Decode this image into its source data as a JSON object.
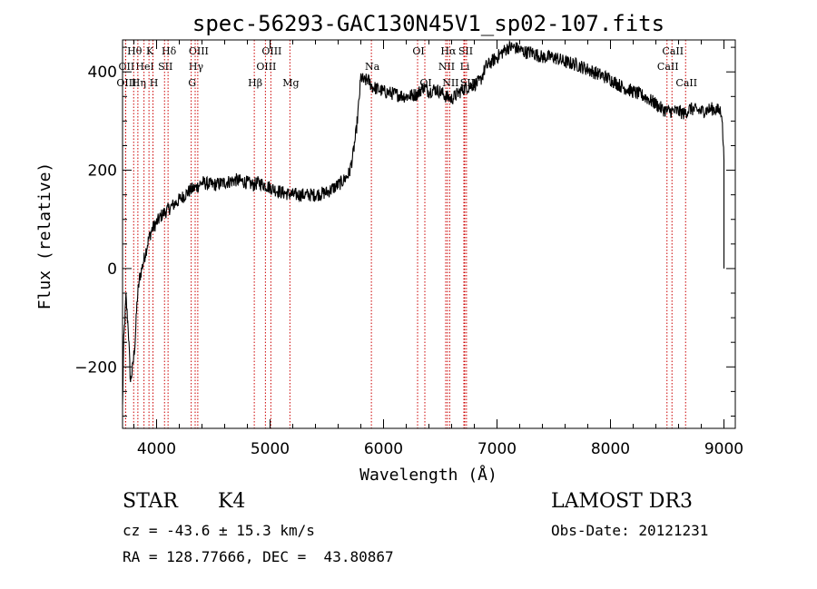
{
  "chart_data": {
    "type": "line",
    "title": "spec-56293-GAC130N45V1_sp02-107.fits",
    "xlabel": "Wavelength (Å)",
    "ylabel": "Flux (relative)",
    "xlim": [
      3700,
      9100
    ],
    "ylim": [
      -325,
      465
    ],
    "xticks": [
      4000,
      5000,
      6000,
      7000,
      8000,
      9000
    ],
    "yticks": [
      -200,
      0,
      200,
      400
    ],
    "series": [
      {
        "name": "spectrum",
        "x": [
          3700,
          3710,
          3730,
          3750,
          3770,
          3790,
          3810,
          3830,
          3850,
          3870,
          3900,
          3930,
          3960,
          3990,
          4020,
          4050,
          4100,
          4150,
          4200,
          4250,
          4300,
          4350,
          4400,
          4500,
          4600,
          4700,
          4800,
          4850,
          4900,
          4950,
          5000,
          5050,
          5100,
          5200,
          5300,
          5400,
          5500,
          5600,
          5650,
          5700,
          5730,
          5760,
          5780,
          5790,
          5800,
          5830,
          5860,
          5900,
          5950,
          6000,
          6100,
          6200,
          6300,
          6350,
          6400,
          6450,
          6500,
          6550,
          6600,
          6650,
          6700,
          6750,
          6800,
          6850,
          6900,
          7000,
          7050,
          7100,
          7150,
          7200,
          7250,
          7300,
          7400,
          7500,
          7600,
          7700,
          7800,
          7900,
          8000,
          8100,
          8200,
          8300,
          8400,
          8450,
          8500,
          8550,
          8600,
          8650,
          8700,
          8800,
          8900,
          8980,
          9000,
          9000
        ],
        "y": [
          -280,
          -150,
          -60,
          -120,
          -230,
          -200,
          -150,
          -60,
          -20,
          0,
          30,
          60,
          80,
          90,
          100,
          110,
          120,
          130,
          140,
          150,
          160,
          165,
          175,
          170,
          175,
          180,
          175,
          170,
          175,
          170,
          165,
          160,
          155,
          150,
          150,
          150,
          155,
          170,
          180,
          195,
          230,
          280,
          330,
          360,
          390,
          380,
          385,
          370,
          365,
          360,
          355,
          350,
          355,
          370,
          360,
          365,
          360,
          350,
          345,
          355,
          365,
          370,
          375,
          380,
          410,
          430,
          440,
          450,
          450,
          445,
          440,
          440,
          430,
          430,
          420,
          415,
          405,
          395,
          385,
          370,
          360,
          350,
          335,
          325,
          320,
          320,
          320,
          315,
          325,
          320,
          325,
          320,
          220,
          0
        ],
        "noise": 14,
        "color": "#000000"
      }
    ],
    "line_markers": [
      {
        "name": "Hθ",
        "x": 3798,
        "row": 1
      },
      {
        "name": "OII",
        "x": 3727,
        "row": 2
      },
      {
        "name": "OIII",
        "x": 3727,
        "row": 3
      },
      {
        "name": "K",
        "x": 3933,
        "row": 1
      },
      {
        "name": "HeI",
        "x": 3889,
        "row": 2
      },
      {
        "name": "Hη",
        "x": 3835,
        "row": 3
      },
      {
        "name": "Hδ",
        "x": 4101,
        "row": 1
      },
      {
        "name": "SII",
        "x": 4070,
        "row": 2
      },
      {
        "name": "H",
        "x": 3968,
        "row": 3
      },
      {
        "name": "OIII",
        "x": 4363,
        "row": 1
      },
      {
        "name": "Hγ",
        "x": 4340,
        "row": 2
      },
      {
        "name": "G",
        "x": 4305,
        "row": 3
      },
      {
        "name": "OIII",
        "x": 5007,
        "row": 1
      },
      {
        "name": "OIII",
        "x": 4959,
        "row": 2
      },
      {
        "name": "Hβ",
        "x": 4861,
        "row": 3
      },
      {
        "name": "Mg",
        "x": 5175,
        "row": 3
      },
      {
        "name": "Na",
        "x": 5893,
        "row": 2
      },
      {
        "name": "OI",
        "x": 6300,
        "row": 1
      },
      {
        "name": "OI",
        "x": 6364,
        "row": 3
      },
      {
        "name": "Hα",
        "x": 6563,
        "row": 1
      },
      {
        "name": "NII",
        "x": 6548,
        "row": 2
      },
      {
        "name": "NII",
        "x": 6583,
        "row": 3
      },
      {
        "name": "SII",
        "x": 6716,
        "row": 1
      },
      {
        "name": "Li",
        "x": 6708,
        "row": 2
      },
      {
        "name": "SII",
        "x": 6731,
        "row": 3
      },
      {
        "name": "CaII",
        "x": 8542,
        "row": 1
      },
      {
        "name": "CaII",
        "x": 8498,
        "row": 2
      },
      {
        "name": "CaII",
        "x": 8662,
        "row": 3
      }
    ]
  },
  "info": {
    "object_class": "STAR",
    "subclass": "K4",
    "survey": "LAMOST DR3",
    "redshift_line": "cz = -43.6 ± 15.3 km/s",
    "obs_date_line": "Obs-Date: 20121231",
    "coords_line": "RA = 128.77666, DEC =  43.80867"
  }
}
